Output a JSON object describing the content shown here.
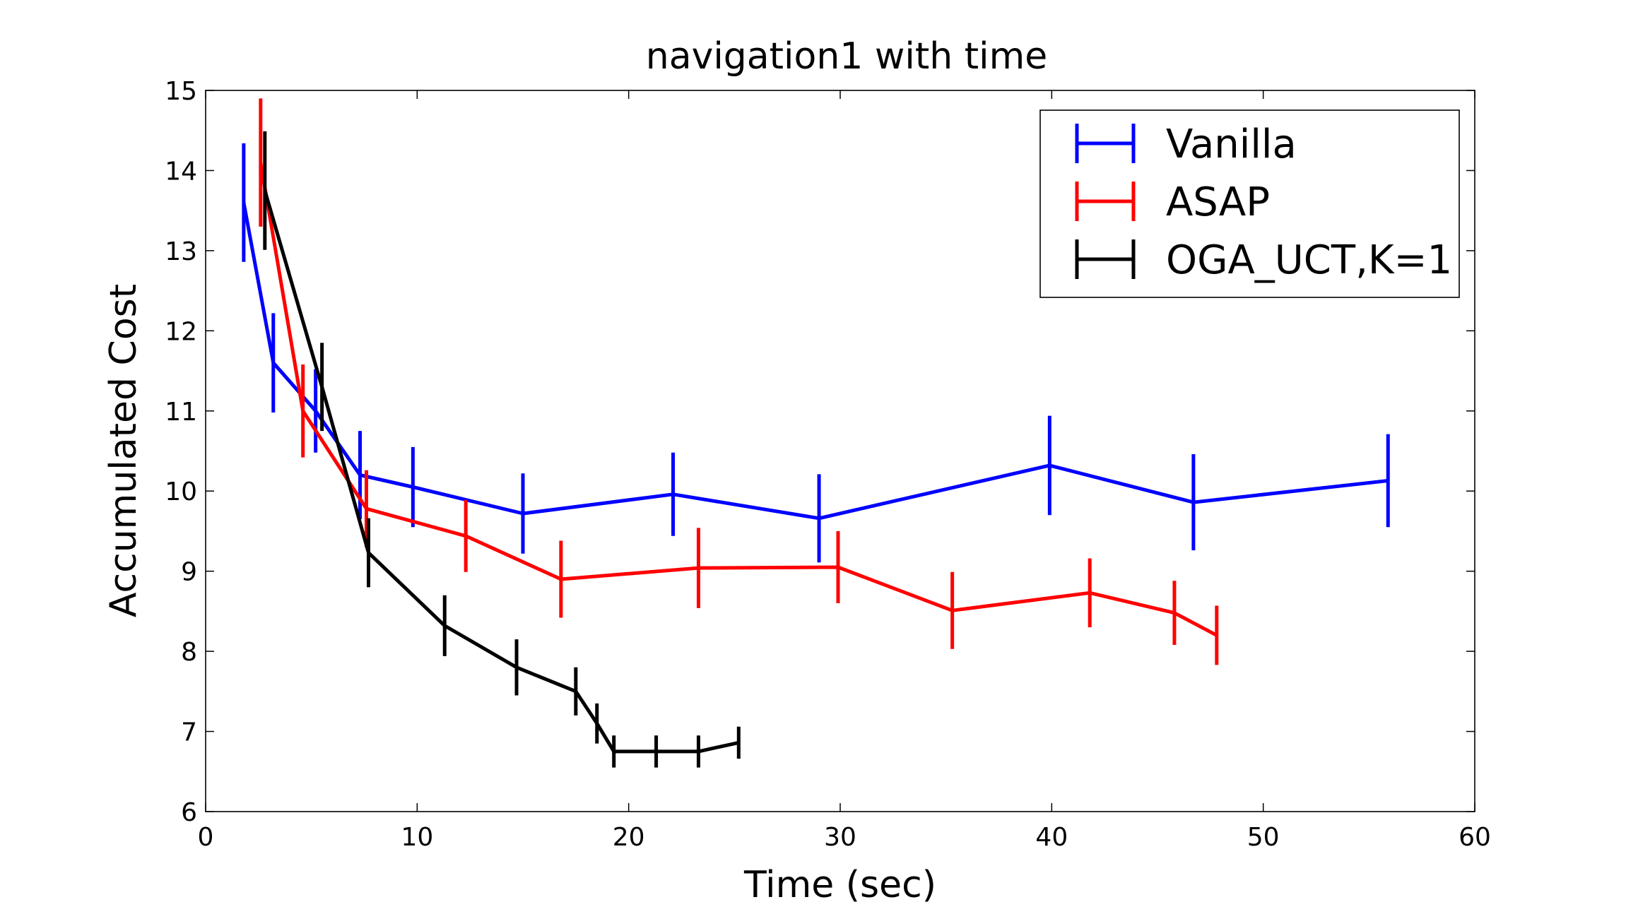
{
  "chart_data": {
    "type": "line",
    "title": "navigation1 with time",
    "xlabel": "Time (sec)",
    "ylabel": "Accumulated Cost",
    "xlim": [
      0,
      60
    ],
    "ylim": [
      6,
      15
    ],
    "xticks": [
      0,
      10,
      20,
      30,
      40,
      50,
      60
    ],
    "yticks": [
      6,
      7,
      8,
      9,
      10,
      11,
      12,
      13,
      14,
      15
    ],
    "grid": false,
    "legend_position": "top-right",
    "error_bars": true,
    "series": [
      {
        "name": "Vanilla",
        "color": "#0000ff",
        "x": [
          1.8,
          3.2,
          5.2,
          7.3,
          9.8,
          15.0,
          22.1,
          29.0,
          39.9,
          46.7,
          55.9
        ],
        "y": [
          13.6,
          11.6,
          11.0,
          10.2,
          10.05,
          9.72,
          9.96,
          9.66,
          10.32,
          9.86,
          10.13
        ],
        "err": [
          0.74,
          0.62,
          0.52,
          0.55,
          0.5,
          0.5,
          0.52,
          0.55,
          0.62,
          0.6,
          0.58
        ]
      },
      {
        "name": "ASAP",
        "color": "#ff0000",
        "x": [
          2.6,
          4.6,
          7.6,
          12.3,
          16.8,
          23.3,
          29.9,
          35.3,
          41.8,
          45.8,
          47.8
        ],
        "y": [
          14.1,
          11.0,
          9.78,
          9.44,
          8.9,
          9.04,
          9.05,
          8.51,
          8.73,
          8.48,
          8.2
        ],
        "err": [
          0.8,
          0.58,
          0.48,
          0.45,
          0.48,
          0.5,
          0.45,
          0.48,
          0.43,
          0.4,
          0.37
        ]
      },
      {
        "name": "OGA_UCT,K=1",
        "color": "#000000",
        "x": [
          2.8,
          5.5,
          7.7,
          11.3,
          14.7,
          17.5,
          18.5,
          19.3,
          21.3,
          23.3,
          25.2
        ],
        "y": [
          13.75,
          11.3,
          9.23,
          8.32,
          7.8,
          7.5,
          7.1,
          6.75,
          6.75,
          6.75,
          6.86
        ],
        "err": [
          0.74,
          0.55,
          0.43,
          0.38,
          0.35,
          0.3,
          0.25,
          0.2,
          0.2,
          0.2,
          0.2
        ]
      }
    ]
  }
}
